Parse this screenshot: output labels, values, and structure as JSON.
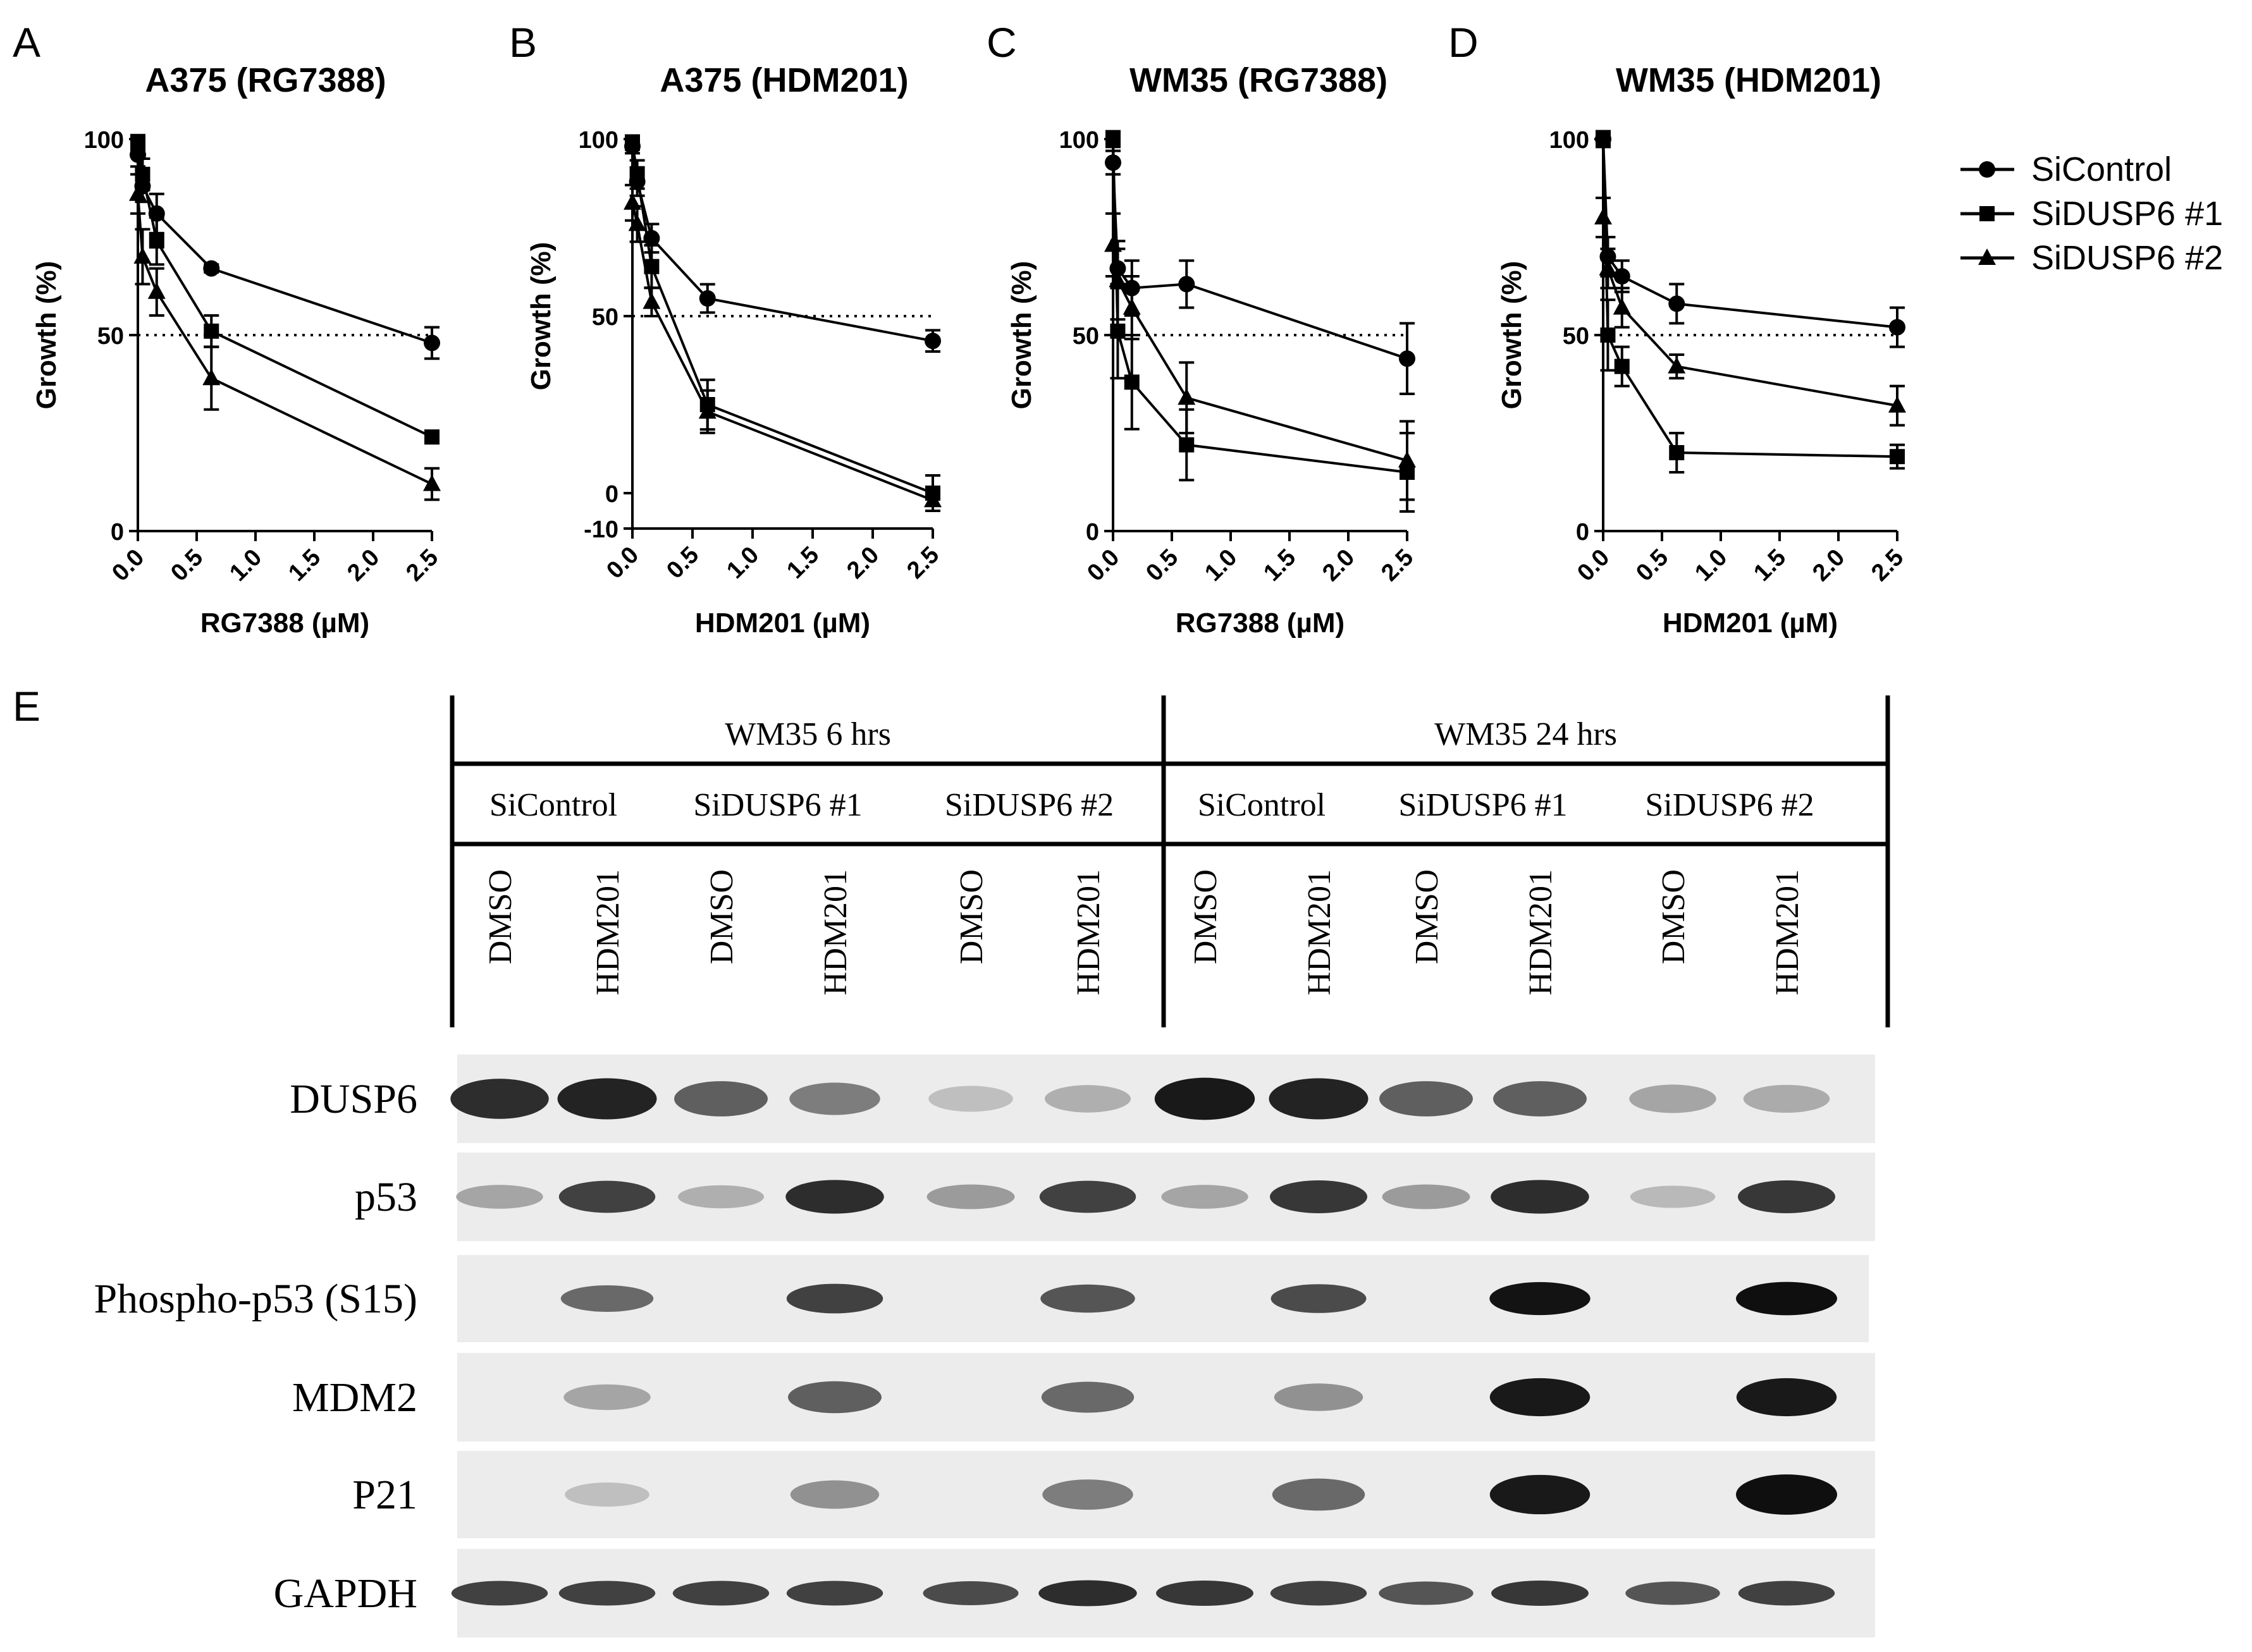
{
  "panel_letters": [
    "A",
    "B",
    "C",
    "D",
    "E"
  ],
  "legend": {
    "entries": [
      {
        "label": "SiControl",
        "marker": "circle"
      },
      {
        "label": "SiDUSP6 #1",
        "marker": "square"
      },
      {
        "label": "SiDUSP6 #2",
        "marker": "triangle"
      }
    ]
  },
  "chart_data": [
    {
      "type": "line",
      "panel": "A",
      "title": "A375 (RG7388)",
      "xlabel": "RG7388 (µM)",
      "ylabel": "Growth (%)",
      "xlim": [
        0,
        2.5
      ],
      "ylim": [
        0,
        100
      ],
      "xticks": [
        "0.0",
        "0.5",
        "1.0",
        "1.5",
        "2.0",
        "2.5"
      ],
      "yticks": [
        "0",
        "50",
        "100"
      ],
      "reference_line": 50,
      "x": [
        0.0,
        0.04,
        0.16,
        0.625,
        2.5
      ],
      "series": [
        {
          "name": "SiControl",
          "marker": "circle",
          "values": [
            96,
            88,
            81,
            67,
            48
          ],
          "error": [
            3,
            4,
            5,
            1,
            4
          ]
        },
        {
          "name": "SiDUSP6 #1",
          "marker": "square",
          "values": [
            99,
            91,
            74,
            51,
            24
          ],
          "error": [
            2,
            4,
            6,
            4,
            1
          ]
        },
        {
          "name": "SiDUSP6 #2",
          "marker": "triangle",
          "values": [
            86,
            70,
            61,
            39,
            12
          ],
          "error": [
            5,
            7,
            6,
            8,
            4
          ]
        }
      ]
    },
    {
      "type": "line",
      "panel": "B",
      "title": "A375 (HDM201)",
      "xlabel": "HDM201 (µM)",
      "ylabel": "Growth (%)",
      "xlim": [
        0,
        2.5
      ],
      "ylim": [
        -10,
        100
      ],
      "xticks": [
        "0.0",
        "0.5",
        "1.0",
        "1.5",
        "2.0",
        "2.5"
      ],
      "yticks": [
        "-10",
        "0",
        "50",
        "100"
      ],
      "reference_line": 50,
      "x": [
        0.0,
        0.04,
        0.16,
        0.625,
        2.5
      ],
      "series": [
        {
          "name": "SiControl",
          "marker": "circle",
          "values": [
            98,
            88,
            72,
            55,
            43
          ],
          "error": [
            2,
            4,
            4,
            4,
            3
          ]
        },
        {
          "name": "SiDUSP6 #1",
          "marker": "square",
          "values": [
            99,
            90,
            64,
            25,
            0
          ],
          "error": [
            2,
            4,
            6,
            7,
            5
          ]
        },
        {
          "name": "SiDUSP6 #2",
          "marker": "triangle",
          "values": [
            82,
            76,
            54,
            23,
            -2
          ],
          "error": [
            5,
            5,
            4,
            6,
            3
          ]
        }
      ]
    },
    {
      "type": "line",
      "panel": "C",
      "title": "WM35 (RG7388)",
      "xlabel": "RG7388 (µM)",
      "ylabel": "Growth (%)",
      "xlim": [
        0,
        2.5
      ],
      "ylim": [
        0,
        100
      ],
      "xticks": [
        "0.0",
        "0.5",
        "1.0",
        "1.5",
        "2.0",
        "2.5"
      ],
      "yticks": [
        "0",
        "50",
        "100"
      ],
      "reference_line": 50,
      "x": [
        0.0,
        0.04,
        0.16,
        0.625,
        2.5
      ],
      "series": [
        {
          "name": "SiControl",
          "marker": "circle",
          "values": [
            94,
            67,
            62,
            63,
            44
          ],
          "error": [
            3,
            5,
            7,
            6,
            9
          ]
        },
        {
          "name": "SiDUSP6 #1",
          "marker": "square",
          "values": [
            100,
            51,
            38,
            22,
            15
          ],
          "error": [
            2,
            12,
            12,
            9,
            10
          ]
        },
        {
          "name": "SiDUSP6 #2",
          "marker": "triangle",
          "values": [
            73,
            64,
            57,
            34,
            18
          ],
          "error": [
            8,
            10,
            8,
            9,
            10
          ]
        }
      ]
    },
    {
      "type": "line",
      "panel": "D",
      "title": "WM35 (HDM201)",
      "xlabel": "HDM201 (µM)",
      "ylabel": "Growth (%)",
      "xlim": [
        0,
        2.5
      ],
      "ylim": [
        0,
        100
      ],
      "xticks": [
        "0.0",
        "0.5",
        "1.0",
        "1.5",
        "2.0",
        "2.5"
      ],
      "yticks": [
        "0",
        "50",
        "100"
      ],
      "reference_line": 50,
      "x": [
        0.0,
        0.04,
        0.16,
        0.625,
        2.5
      ],
      "series": [
        {
          "name": "SiControl",
          "marker": "circle",
          "values": [
            100,
            70,
            65,
            58,
            52
          ],
          "error": [
            2,
            5,
            4,
            5,
            5
          ]
        },
        {
          "name": "SiDUSP6 #1",
          "marker": "square",
          "values": [
            100,
            50,
            42,
            20,
            19
          ],
          "error": [
            2,
            9,
            5,
            5,
            3
          ]
        },
        {
          "name": "SiDUSP6 #2",
          "marker": "triangle",
          "values": [
            80,
            67,
            57,
            42,
            32
          ],
          "error": [
            5,
            5,
            5,
            3,
            5
          ]
        }
      ]
    }
  ],
  "western_blot": {
    "panel": "E",
    "groups": [
      {
        "label": "WM35 6 hrs",
        "conditions": [
          "SiControl",
          "SiDUSP6 #1",
          "SiDUSP6 #2"
        ]
      },
      {
        "label": "WM35 24 hrs",
        "conditions": [
          "SiControl",
          "SiDUSP6 #1",
          "SiDUSP6 #2"
        ]
      }
    ],
    "treatments": [
      "DMSO",
      "HDM201",
      "DMSO",
      "HDM201",
      "DMSO",
      "HDM201",
      "DMSO",
      "HDM201",
      "DMSO",
      "HDM201",
      "DMSO",
      "HDM201"
    ],
    "rows": [
      {
        "label": "DUSP6",
        "intensity": [
          0.85,
          0.9,
          0.6,
          0.45,
          0.12,
          0.2,
          0.95,
          0.9,
          0.6,
          0.6,
          0.25,
          0.22
        ]
      },
      {
        "label": "p53",
        "intensity": [
          0.25,
          0.75,
          0.2,
          0.85,
          0.3,
          0.75,
          0.25,
          0.8,
          0.3,
          0.85,
          0.15,
          0.8
        ]
      },
      {
        "label": "Phospho-p53 (S15)",
        "intensity": [
          0,
          0.55,
          0,
          0.75,
          0,
          0.65,
          0,
          0.7,
          0,
          0.98,
          0,
          1.0
        ]
      },
      {
        "label": "MDM2",
        "intensity": [
          0,
          0.25,
          0,
          0.6,
          0,
          0.55,
          0,
          0.35,
          0,
          0.95,
          0,
          0.95
        ]
      },
      {
        "label": "P21",
        "intensity": [
          0,
          0.12,
          0,
          0.35,
          0,
          0.45,
          0,
          0.55,
          0,
          0.95,
          0,
          1.0
        ]
      },
      {
        "label": "GAPDH",
        "intensity": [
          0.75,
          0.75,
          0.75,
          0.75,
          0.7,
          0.85,
          0.8,
          0.75,
          0.65,
          0.8,
          0.65,
          0.75
        ]
      }
    ]
  }
}
